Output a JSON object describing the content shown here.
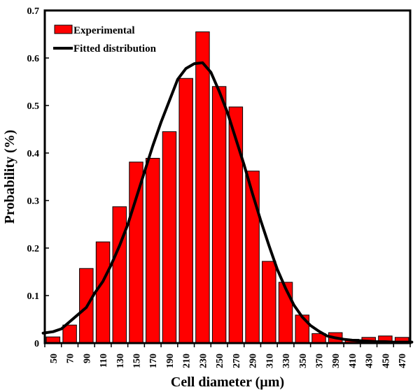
{
  "chart_data": {
    "type": "bar",
    "categories": [
      "50",
      "70",
      "90",
      "110",
      "130",
      "150",
      "170",
      "190",
      "210",
      "230",
      "250",
      "270",
      "290",
      "310",
      "330",
      "350",
      "370",
      "390",
      "410",
      "430",
      "450",
      "470"
    ],
    "series": [
      {
        "name": "Experimental",
        "type": "bar",
        "color": "#ff0000",
        "values": [
          0.013,
          0.038,
          0.157,
          0.213,
          0.287,
          0.381,
          0.389,
          0.445,
          0.557,
          0.655,
          0.54,
          0.497,
          0.362,
          0.172,
          0.128,
          0.059,
          0.02,
          0.022,
          0.008,
          0.012,
          0.015,
          0.012
        ]
      },
      {
        "name": "Fitted distribution",
        "type": "line",
        "color": "#000000",
        "x": [
          38,
          50,
          60,
          70,
          80,
          90,
          100,
          110,
          120,
          130,
          140,
          150,
          160,
          170,
          180,
          190,
          200,
          210,
          220,
          230,
          240,
          250,
          260,
          270,
          280,
          290,
          300,
          310,
          320,
          330,
          340,
          350,
          360,
          370,
          380,
          390,
          400,
          410,
          420,
          430,
          440,
          450,
          460,
          470,
          482
        ],
        "values": [
          0.021,
          0.024,
          0.03,
          0.045,
          0.06,
          0.075,
          0.105,
          0.13,
          0.165,
          0.205,
          0.25,
          0.305,
          0.36,
          0.415,
          0.465,
          0.51,
          0.555,
          0.578,
          0.588,
          0.59,
          0.57,
          0.53,
          0.485,
          0.43,
          0.375,
          0.315,
          0.258,
          0.205,
          0.155,
          0.115,
          0.08,
          0.055,
          0.037,
          0.025,
          0.015,
          0.011,
          0.008,
          0.006,
          0.005,
          0.004,
          0.003,
          0.003,
          0.002,
          0.002,
          0.002
        ]
      }
    ],
    "xlabel": "Cell diameter (µm)",
    "ylabel": "Probability (%)",
    "ylim": [
      0,
      0.7
    ],
    "yticks": [
      "0",
      "0.1",
      "0.2",
      "0.3",
      "0.4",
      "0.5",
      "0.6",
      "0.7"
    ],
    "ytick_values": [
      0,
      0.1,
      0.2,
      0.3,
      0.4,
      0.5,
      0.6,
      0.7
    ],
    "grid": false,
    "legend_position": "top-left"
  }
}
